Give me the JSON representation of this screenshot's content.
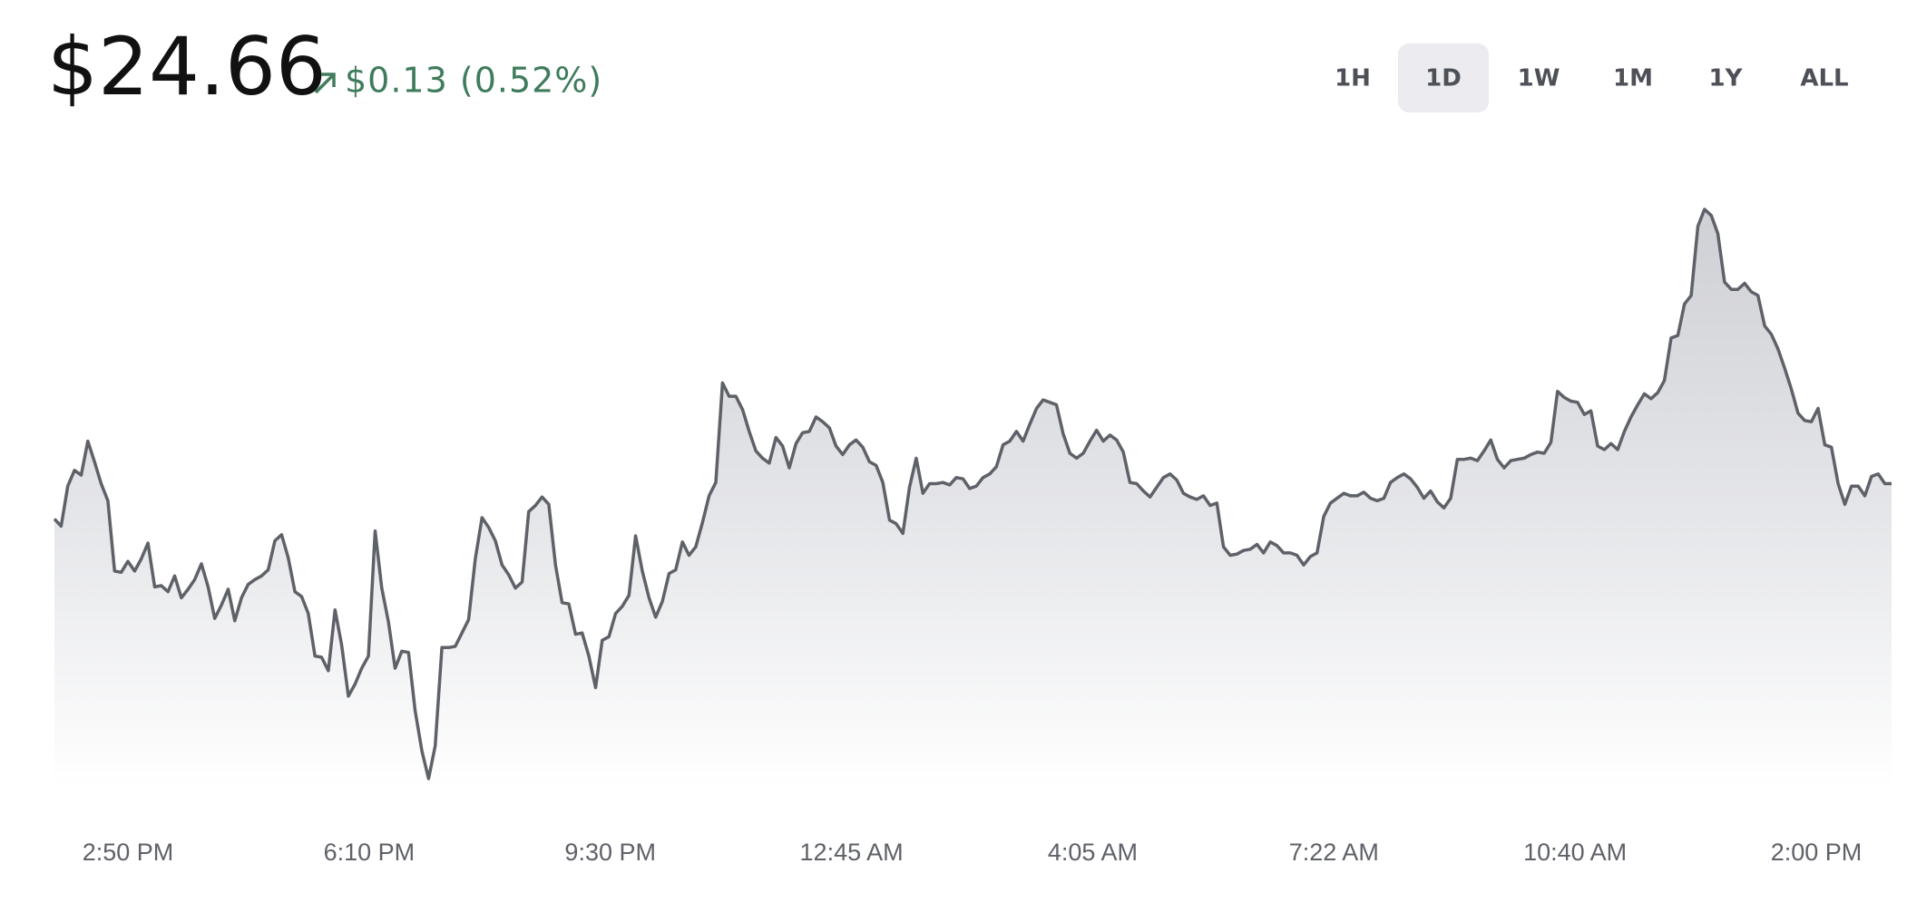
{
  "header": {
    "price": "$24.66",
    "change": "$0.13 (0.52%)"
  },
  "ranges": {
    "labels": [
      "1H",
      "1D",
      "1W",
      "1M",
      "1Y",
      "ALL"
    ],
    "selected": 1
  },
  "chart_data": {
    "type": "line",
    "color": "#5f6169",
    "fill": true,
    "ylim": [
      23.4,
      25.95
    ],
    "xtick_labels": [
      "2:50 PM",
      "6:10 PM",
      "9:30 PM",
      "12:45 AM",
      "4:05 AM",
      "7:22 AM",
      "10:40 AM",
      "2:00 PM"
    ],
    "values": [
      24.515,
      24.485,
      24.65,
      24.715,
      24.695,
      24.835,
      24.75,
      24.66,
      24.59,
      24.3,
      24.295,
      24.34,
      24.3,
      24.35,
      24.415,
      24.235,
      24.24,
      24.215,
      24.28,
      24.19,
      24.225,
      24.265,
      24.33,
      24.235,
      24.105,
      24.16,
      24.225,
      24.095,
      24.19,
      24.245,
      24.265,
      24.28,
      24.305,
      24.425,
      24.45,
      24.355,
      24.215,
      24.195,
      24.125,
      23.95,
      23.945,
      23.89,
      24.14,
      23.995,
      23.785,
      23.835,
      23.9,
      23.95,
      24.465,
      24.23,
      24.09,
      23.9,
      23.97,
      23.965,
      23.725,
      23.56,
      23.445,
      23.58,
      23.985,
      23.985,
      23.99,
      24.045,
      24.1,
      24.35,
      24.52,
      24.48,
      24.425,
      24.325,
      24.285,
      24.23,
      24.255,
      24.545,
      24.57,
      24.605,
      24.575,
      24.325,
      24.17,
      24.165,
      24.04,
      24.045,
      23.95,
      23.82,
      24.015,
      24.03,
      24.125,
      24.155,
      24.2,
      24.445,
      24.3,
      24.19,
      24.11,
      24.175,
      24.29,
      24.305,
      24.42,
      24.365,
      24.4,
      24.5,
      24.61,
      24.665,
      25.075,
      25.02,
      25.02,
      24.965,
      24.875,
      24.795,
      24.765,
      24.745,
      24.85,
      24.815,
      24.725,
      24.825,
      24.87,
      24.875,
      24.935,
      24.915,
      24.89,
      24.815,
      24.78,
      24.82,
      24.84,
      24.81,
      24.75,
      24.735,
      24.665,
      24.51,
      24.495,
      24.455,
      24.645,
      24.765,
      24.62,
      24.66,
      24.66,
      24.665,
      24.655,
      24.685,
      24.68,
      24.64,
      24.65,
      24.685,
      24.7,
      24.73,
      24.82,
      24.835,
      24.875,
      24.835,
      24.905,
      24.97,
      25.005,
      24.995,
      24.985,
      24.865,
      24.785,
      24.765,
      24.785,
      24.835,
      24.88,
      24.835,
      24.86,
      24.84,
      24.79,
      24.665,
      24.66,
      24.63,
      24.605,
      24.645,
      24.685,
      24.7,
      24.675,
      24.62,
      24.605,
      24.595,
      24.61,
      24.57,
      24.58,
      24.4,
      24.365,
      24.37,
      24.385,
      24.39,
      24.41,
      24.375,
      24.42,
      24.405,
      24.375,
      24.375,
      24.365,
      24.325,
      24.36,
      24.375,
      24.525,
      24.58,
      24.6,
      24.62,
      24.61,
      24.61,
      24.625,
      24.6,
      24.59,
      24.6,
      24.665,
      24.685,
      24.7,
      24.68,
      24.645,
      24.6,
      24.63,
      24.585,
      24.56,
      24.6,
      24.76,
      24.76,
      24.765,
      24.755,
      24.795,
      24.84,
      24.76,
      24.725,
      24.755,
      24.76,
      24.765,
      24.78,
      24.79,
      24.785,
      24.83,
      25.04,
      25.015,
      25.0,
      24.995,
      24.945,
      24.96,
      24.815,
      24.8,
      24.825,
      24.8,
      24.875,
      24.935,
      24.985,
      25.03,
      25.01,
      25.035,
      25.085,
      25.26,
      25.27,
      25.4,
      25.435,
      25.72,
      25.79,
      25.765,
      25.69,
      25.49,
      25.46,
      25.46,
      25.485,
      25.45,
      25.435,
      25.31,
      25.275,
      25.215,
      25.135,
      25.05,
      24.95,
      24.92,
      24.915,
      24.97,
      24.82,
      24.81,
      24.66,
      24.575,
      24.65,
      24.65,
      24.61,
      24.69,
      24.7,
      24.66,
      24.66
    ]
  }
}
